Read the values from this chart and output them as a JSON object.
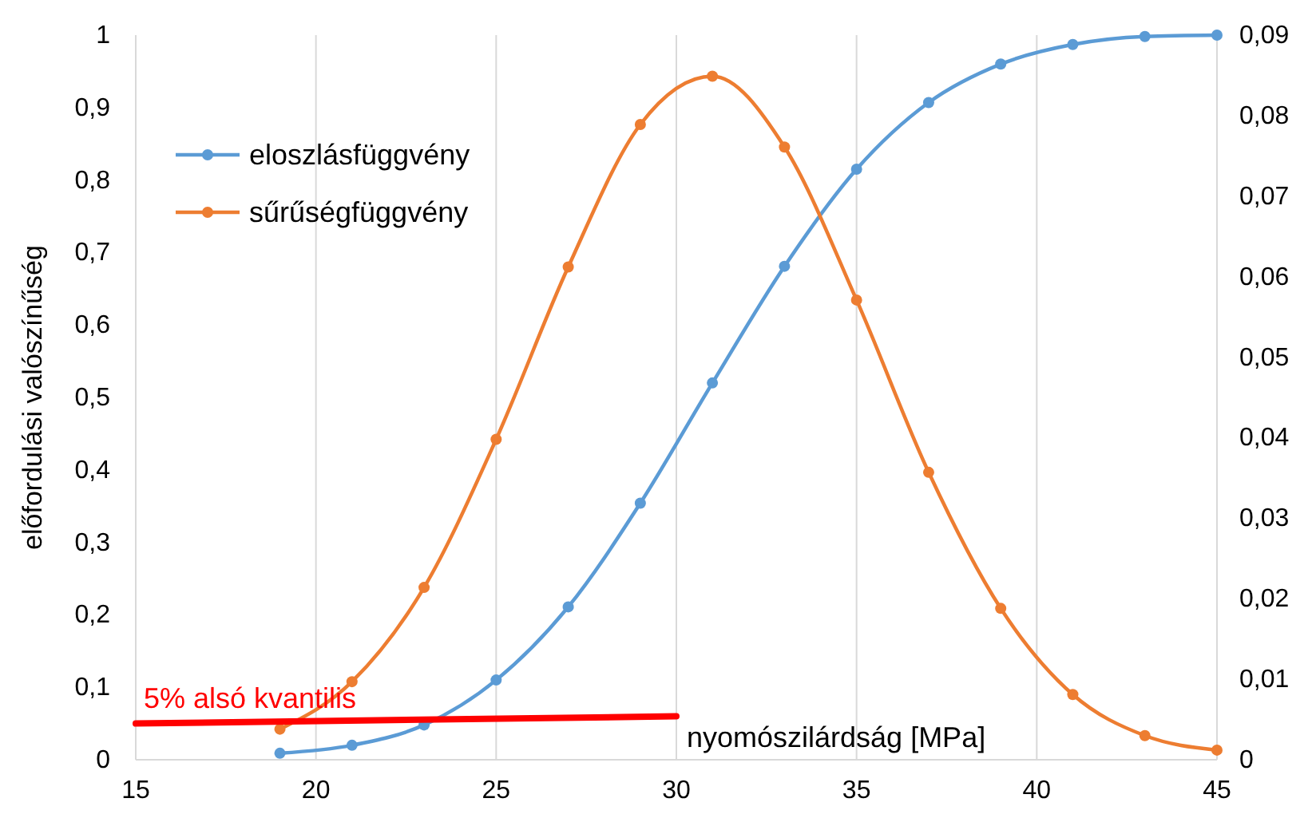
{
  "chart_data": {
    "type": "line",
    "xlabel": "nyomószilárdság [MPa]",
    "ylabel": "előfordulási valószínűség",
    "xlim": [
      15,
      45
    ],
    "xticks": [
      15,
      20,
      25,
      30,
      35,
      40,
      45
    ],
    "ylim": [
      0,
      1
    ],
    "yticks": [
      0,
      {
        "value": 0.1,
        "label": "0,1"
      },
      {
        "value": 0.2,
        "label": "0,2"
      },
      {
        "value": 0.3,
        "label": "0,3"
      },
      {
        "value": 0.4,
        "label": "0,4"
      },
      {
        "value": 0.5,
        "label": "0,5"
      },
      {
        "value": 0.6,
        "label": "0,6"
      },
      {
        "value": 0.7,
        "label": "0,7"
      },
      {
        "value": 0.8,
        "label": "0,8"
      },
      {
        "value": 0.9,
        "label": "0,9"
      },
      1
    ],
    "y2lim": [
      0,
      0.09
    ],
    "y2ticks": [
      0,
      {
        "value": 0.01,
        "label": "0,01"
      },
      {
        "value": 0.02,
        "label": "0,02"
      },
      {
        "value": 0.03,
        "label": "0,03"
      },
      {
        "value": 0.04,
        "label": "0,04"
      },
      {
        "value": 0.05,
        "label": "0,05"
      },
      {
        "value": 0.06,
        "label": "0,06"
      },
      {
        "value": 0.07,
        "label": "0,07"
      },
      {
        "value": 0.08,
        "label": "0,08"
      },
      {
        "value": 0.09,
        "label": "0,09"
      }
    ],
    "grid": "x",
    "legend": "top left",
    "marker": "circle",
    "series": [
      {
        "name": "eloszlásfüggvény",
        "color": "#5b9bd5",
        "x": [
          19,
          21,
          23,
          25,
          27,
          29,
          31,
          33,
          35,
          37,
          39,
          41,
          43,
          45
        ],
        "values": [
          0.009,
          0.02,
          0.048,
          0.11,
          0.211,
          0.354,
          0.52,
          0.681,
          0.815,
          0.907,
          0.96,
          0.987,
          0.998,
          1.0
        ]
      },
      {
        "name": "sűrűségfüggvény",
        "color": "#ed7d31",
        "axis": "y2",
        "x": [
          19,
          21,
          23,
          25,
          27,
          29,
          31,
          33,
          35,
          37,
          39,
          41,
          43,
          45
        ],
        "values": [
          0.0038,
          0.0097,
          0.0214,
          0.0398,
          0.0612,
          0.0789,
          0.0849,
          0.0761,
          0.0571,
          0.0357,
          0.0188,
          0.0081,
          0.003,
          0.0012
        ]
      },
      {
        "color": "#ff0000",
        "marker": "none",
        "x": [
          15,
          30
        ],
        "values": [
          0.05,
          0.06
        ]
      }
    ],
    "annotations": [
      {
        "text": "5% alsó kvantilis",
        "x": 15,
        "y": 0.05
      }
    ]
  }
}
